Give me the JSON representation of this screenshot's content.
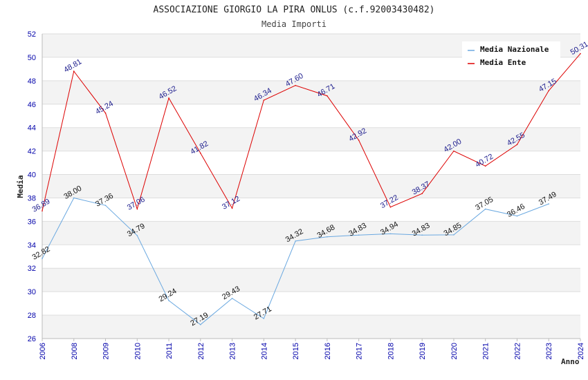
{
  "header": {
    "title": "ASSOCIAZIONE GIORGIO LA PIRA ONLUS (c.f.92003430482)",
    "subtitle": "Media Importi"
  },
  "chart_data": {
    "type": "line",
    "title": "ASSOCIAZIONE GIORGIO LA PIRA ONLUS (c.f.92003430482)",
    "subtitle": "Media Importi",
    "xlabel": "Anno",
    "ylabel": "Media",
    "categories": [
      "2006",
      "2008",
      "2009",
      "2010",
      "2011",
      "2012",
      "2013",
      "2014",
      "2015",
      "2016",
      "2017",
      "2018",
      "2019",
      "2020",
      "2021",
      "2022",
      "2023",
      "2024"
    ],
    "ylim": [
      26,
      52
    ],
    "yticks": [
      26,
      28,
      30,
      32,
      34,
      36,
      38,
      40,
      42,
      44,
      46,
      48,
      50,
      52
    ],
    "grid": "horizontal-bands",
    "legend_position": "top-right",
    "series": [
      {
        "name": "Media Nazionale",
        "color": "#6aa8e0",
        "values": [
          32.82,
          38.0,
          37.36,
          34.79,
          29.24,
          27.19,
          29.43,
          27.71,
          34.32,
          34.68,
          34.83,
          34.94,
          34.83,
          34.85,
          37.05,
          36.46,
          37.49,
          null
        ],
        "labels": [
          "32.82",
          "38.00",
          "37.36",
          "34.79",
          "29.24",
          "27.19",
          "29.43",
          "27.71",
          "34.32",
          "34.68",
          "34.83",
          "34.94",
          "34.83",
          "34.85",
          "37.05",
          "36.46",
          "37.49",
          ""
        ]
      },
      {
        "name": "Media Ente",
        "color": "#dd0000",
        "values": [
          36.89,
          48.81,
          45.24,
          37.06,
          46.52,
          41.82,
          37.12,
          46.34,
          47.6,
          46.71,
          42.92,
          37.22,
          38.37,
          42.0,
          40.72,
          42.55,
          47.15,
          50.31
        ],
        "labels": [
          "36.89",
          "48.81",
          "45.24",
          "37.06",
          "46.52",
          "41.82",
          "37.12",
          "46.34",
          "47.60",
          "46.71",
          "42.92",
          "37.22",
          "38.37",
          "42.00",
          "40.72",
          "42.55",
          "47.15",
          "50.31"
        ]
      }
    ]
  }
}
